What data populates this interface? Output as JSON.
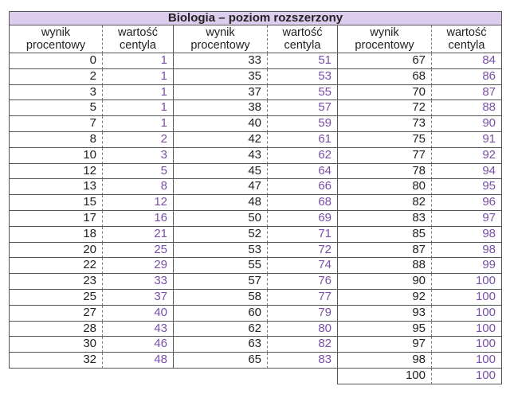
{
  "title": "Biologia – poziom rozszerzony",
  "headers": {
    "score": "wynik\nprocentowy",
    "centile": "wartość\ncentyla"
  },
  "accent_color": "#7a4ea8",
  "groups": [
    {
      "rows": [
        [
          "0",
          "1"
        ],
        [
          "2",
          "1"
        ],
        [
          "3",
          "1"
        ],
        [
          "5",
          "1"
        ],
        [
          "7",
          "1"
        ],
        [
          "8",
          "2"
        ],
        [
          "10",
          "3"
        ],
        [
          "12",
          "5"
        ],
        [
          "13",
          "8"
        ],
        [
          "15",
          "12"
        ],
        [
          "17",
          "16"
        ],
        [
          "18",
          "21"
        ],
        [
          "20",
          "25"
        ],
        [
          "22",
          "29"
        ],
        [
          "23",
          "33"
        ],
        [
          "25",
          "37"
        ],
        [
          "27",
          "40"
        ],
        [
          "28",
          "43"
        ],
        [
          "30",
          "46"
        ],
        [
          "32",
          "48"
        ]
      ]
    },
    {
      "rows": [
        [
          "33",
          "51"
        ],
        [
          "35",
          "53"
        ],
        [
          "37",
          "55"
        ],
        [
          "38",
          "57"
        ],
        [
          "40",
          "59"
        ],
        [
          "42",
          "61"
        ],
        [
          "43",
          "62"
        ],
        [
          "45",
          "64"
        ],
        [
          "47",
          "66"
        ],
        [
          "48",
          "68"
        ],
        [
          "50",
          "69"
        ],
        [
          "52",
          "71"
        ],
        [
          "53",
          "72"
        ],
        [
          "55",
          "74"
        ],
        [
          "57",
          "76"
        ],
        [
          "58",
          "77"
        ],
        [
          "60",
          "79"
        ],
        [
          "62",
          "80"
        ],
        [
          "63",
          "82"
        ],
        [
          "65",
          "83"
        ]
      ]
    },
    {
      "rows": [
        [
          "67",
          "84"
        ],
        [
          "68",
          "86"
        ],
        [
          "70",
          "87"
        ],
        [
          "72",
          "88"
        ],
        [
          "73",
          "90"
        ],
        [
          "75",
          "91"
        ],
        [
          "77",
          "92"
        ],
        [
          "78",
          "94"
        ],
        [
          "80",
          "95"
        ],
        [
          "82",
          "96"
        ],
        [
          "83",
          "97"
        ],
        [
          "85",
          "98"
        ],
        [
          "87",
          "98"
        ],
        [
          "88",
          "99"
        ],
        [
          "90",
          "100"
        ],
        [
          "92",
          "100"
        ],
        [
          "93",
          "100"
        ],
        [
          "95",
          "100"
        ],
        [
          "97",
          "100"
        ],
        [
          "98",
          "100"
        ],
        [
          "100",
          "100"
        ]
      ]
    }
  ]
}
